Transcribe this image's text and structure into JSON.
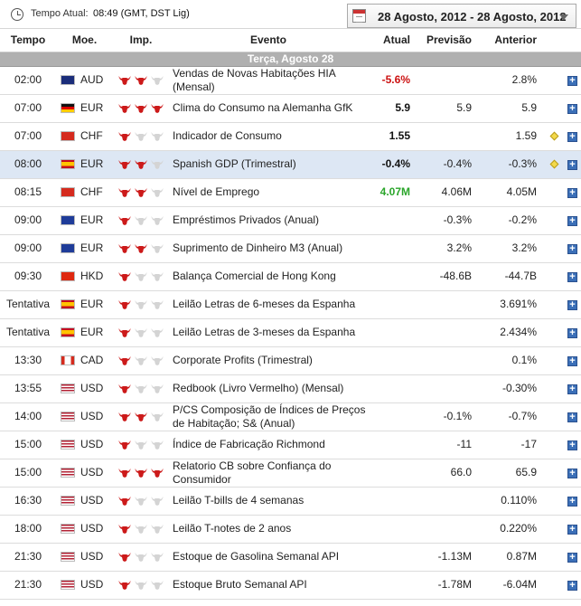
{
  "header": {
    "tz_label": "Tempo Atual:",
    "tz_value": "08:49 (GMT, DST Lig)",
    "date_range": "28 Agosto, 2012 - 28 Agosto, 2012"
  },
  "columns": {
    "time": "Tempo",
    "currency": "Moe.",
    "importance": "Imp.",
    "event": "Evento",
    "actual": "Atual",
    "forecast": "Previsão",
    "previous": "Anterior"
  },
  "day_label": "Terça, Agosto 28",
  "colors": {
    "positive": "#2aa52a",
    "negative": "#cc1111",
    "bull_active": "#cc1a1a",
    "bull_inactive": "#d4d4d4",
    "highlight_row": "#dde7f4",
    "day_bar": "#b0b0b0"
  },
  "rows": [
    {
      "time": "02:00",
      "flag": "au",
      "currency": "AUD",
      "imp": 2,
      "event": "Vendas de Novas Habitações HIA (Mensal)",
      "actual": "-5.6%",
      "actual_color": "negative",
      "forecast": "",
      "previous": "2.8%",
      "diamond": false
    },
    {
      "time": "07:00",
      "flag": "de",
      "currency": "EUR",
      "imp": 3,
      "event": "Clima do Consumo na Alemanha GfK",
      "actual": "5.9",
      "actual_color": "neutral",
      "forecast": "5.9",
      "previous": "5.9",
      "diamond": false
    },
    {
      "time": "07:00",
      "flag": "ch",
      "currency": "CHF",
      "imp": 1,
      "event": "Indicador de Consumo",
      "actual": "1.55",
      "actual_color": "neutral",
      "forecast": "",
      "previous": "1.59",
      "diamond": true
    },
    {
      "time": "08:00",
      "flag": "es",
      "currency": "EUR",
      "imp": 2,
      "event": "Spanish GDP (Trimestral)",
      "actual": "-0.4%",
      "actual_color": "neutral",
      "forecast": "-0.4%",
      "previous": "-0.3%",
      "diamond": true,
      "highlight": true
    },
    {
      "time": "08:15",
      "flag": "ch",
      "currency": "CHF",
      "imp": 2,
      "event": "Nível de Emprego",
      "actual": "4.07M",
      "actual_color": "positive",
      "forecast": "4.06M",
      "previous": "4.05M",
      "diamond": false
    },
    {
      "time": "09:00",
      "flag": "eu",
      "currency": "EUR",
      "imp": 1,
      "event": "Empréstimos Privados (Anual)",
      "actual": "",
      "actual_color": "neutral",
      "forecast": "-0.3%",
      "previous": "-0.2%",
      "diamond": false
    },
    {
      "time": "09:00",
      "flag": "eu",
      "currency": "EUR",
      "imp": 2,
      "event": "Suprimento de Dinheiro M3 (Anual)",
      "actual": "",
      "actual_color": "neutral",
      "forecast": "3.2%",
      "previous": "3.2%",
      "diamond": false
    },
    {
      "time": "09:30",
      "flag": "hk",
      "currency": "HKD",
      "imp": 1,
      "event": "Balança Comercial de Hong Kong",
      "actual": "",
      "actual_color": "neutral",
      "forecast": "-48.6B",
      "previous": "-44.7B",
      "diamond": false
    },
    {
      "time": "Tentativa",
      "flag": "es",
      "currency": "EUR",
      "imp": 1,
      "event": "Leilão Letras de 6-meses da Espanha",
      "actual": "",
      "actual_color": "neutral",
      "forecast": "",
      "previous": "3.691%",
      "diamond": false
    },
    {
      "time": "Tentativa",
      "flag": "es",
      "currency": "EUR",
      "imp": 1,
      "event": "Leilão Letras de 3-meses da Espanha",
      "actual": "",
      "actual_color": "neutral",
      "forecast": "",
      "previous": "2.434%",
      "diamond": false
    },
    {
      "time": "13:30",
      "flag": "ca",
      "currency": "CAD",
      "imp": 1,
      "event": "Corporate Profits (Trimestral)",
      "actual": "",
      "actual_color": "neutral",
      "forecast": "",
      "previous": "0.1%",
      "diamond": false
    },
    {
      "time": "13:55",
      "flag": "us",
      "currency": "USD",
      "imp": 1,
      "event": "Redbook (Livro Vermelho) (Mensal)",
      "actual": "",
      "actual_color": "neutral",
      "forecast": "",
      "previous": "-0.30%",
      "diamond": false
    },
    {
      "time": "14:00",
      "flag": "us",
      "currency": "USD",
      "imp": 2,
      "event": "P/CS Composição de Índices de Preços de Habitação; S& (Anual)",
      "actual": "",
      "actual_color": "neutral",
      "forecast": "-0.1%",
      "previous": "-0.7%",
      "diamond": false
    },
    {
      "time": "15:00",
      "flag": "us",
      "currency": "USD",
      "imp": 1,
      "event": "Índice de Fabricação Richmond",
      "actual": "",
      "actual_color": "neutral",
      "forecast": "-11",
      "previous": "-17",
      "diamond": false
    },
    {
      "time": "15:00",
      "flag": "us",
      "currency": "USD",
      "imp": 3,
      "event": "Relatorio CB sobre Confiança do Consumidor",
      "actual": "",
      "actual_color": "neutral",
      "forecast": "66.0",
      "previous": "65.9",
      "diamond": false
    },
    {
      "time": "16:30",
      "flag": "us",
      "currency": "USD",
      "imp": 1,
      "event": "Leilão T-bills de 4 semanas",
      "actual": "",
      "actual_color": "neutral",
      "forecast": "",
      "previous": "0.110%",
      "diamond": false
    },
    {
      "time": "18:00",
      "flag": "us",
      "currency": "USD",
      "imp": 1,
      "event": "Leilão T-notes de 2 anos",
      "actual": "",
      "actual_color": "neutral",
      "forecast": "",
      "previous": "0.220%",
      "diamond": false
    },
    {
      "time": "21:30",
      "flag": "us",
      "currency": "USD",
      "imp": 1,
      "event": "Estoque de Gasolina Semanal API",
      "actual": "",
      "actual_color": "neutral",
      "forecast": "-1.13M",
      "previous": "0.87M",
      "diamond": false
    },
    {
      "time": "21:30",
      "flag": "us",
      "currency": "USD",
      "imp": 1,
      "event": "Estoque Bruto Semanal API",
      "actual": "",
      "actual_color": "neutral",
      "forecast": "-1.78M",
      "previous": "-6.04M",
      "diamond": false
    }
  ]
}
